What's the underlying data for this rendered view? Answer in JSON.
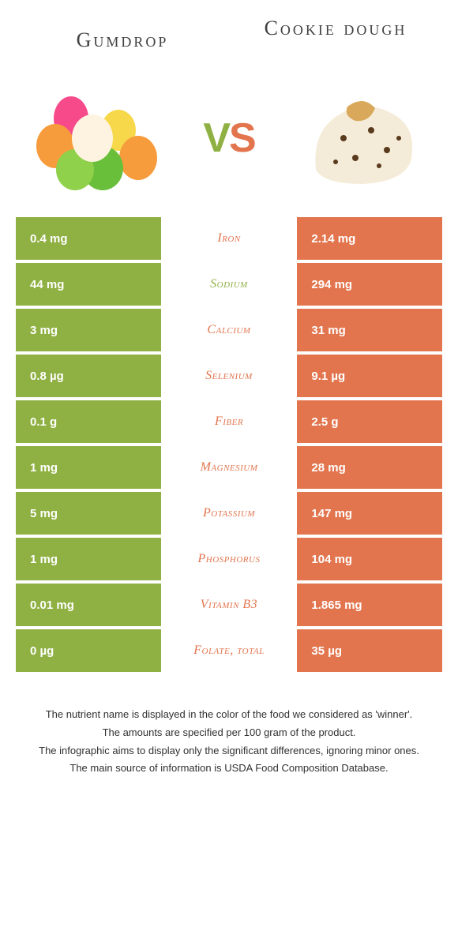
{
  "colors": {
    "left": "#8fb042",
    "right": "#e2754e",
    "text": "#303030"
  },
  "header": {
    "left_title": "Gumdrop",
    "right_title": "Cookie dough",
    "vs_v": "V",
    "vs_s": "S"
  },
  "rows": [
    {
      "left": "0.4 mg",
      "label": "Iron",
      "right": "2.14 mg",
      "winner": "right"
    },
    {
      "left": "44 mg",
      "label": "Sodium",
      "right": "294 mg",
      "winner": "left"
    },
    {
      "left": "3 mg",
      "label": "Calcium",
      "right": "31 mg",
      "winner": "right"
    },
    {
      "left": "0.8 µg",
      "label": "Selenium",
      "right": "9.1 µg",
      "winner": "right"
    },
    {
      "left": "0.1 g",
      "label": "Fiber",
      "right": "2.5 g",
      "winner": "right"
    },
    {
      "left": "1 mg",
      "label": "Magnesium",
      "right": "28 mg",
      "winner": "right"
    },
    {
      "left": "5 mg",
      "label": "Potassium",
      "right": "147 mg",
      "winner": "right"
    },
    {
      "left": "1 mg",
      "label": "Phosphorus",
      "right": "104 mg",
      "winner": "right"
    },
    {
      "left": "0.01 mg",
      "label": "Vitamin B3",
      "right": "1.865 mg",
      "winner": "right"
    },
    {
      "left": "0 µg",
      "label": "Folate, total",
      "right": "35 µg",
      "winner": "right"
    }
  ],
  "footer": {
    "line1": "The nutrient name is displayed in the color of the food we considered as 'winner'.",
    "line2": "The amounts are specified per 100 gram of the product.",
    "line3": "The infographic aims to display only the significant differences, ignoring minor ones.",
    "line4": "The main source of information is USDA Food Composition Database."
  }
}
